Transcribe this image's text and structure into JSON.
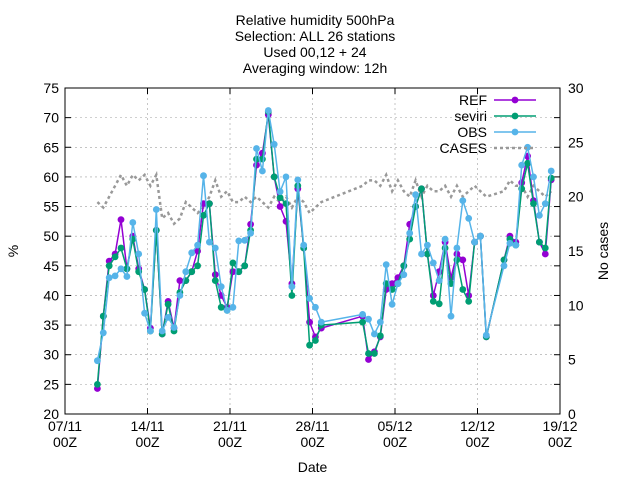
{
  "title_lines": [
    "Relative humidity 500hPa",
    "Selection: ALL      26 stations",
    "Used 00,12 + 24",
    "Averaging window: 12h"
  ],
  "chart_data": {
    "type": "line",
    "xlabel": "Date",
    "ylabel": "%",
    "y2label": "No cases",
    "xlim": [
      "2020-11-07T00",
      "2020-12-19T00"
    ],
    "ylim": [
      20,
      75
    ],
    "y2lim": [
      0,
      30
    ],
    "x_ticks": [
      {
        "x": "2020-11-07T00",
        "line1": "07/11",
        "line2": "00Z"
      },
      {
        "x": "2020-11-14T00",
        "line1": "14/11",
        "line2": "00Z"
      },
      {
        "x": "2020-11-21T00",
        "line1": "21/11",
        "line2": "00Z"
      },
      {
        "x": "2020-11-28T00",
        "line1": "28/11",
        "line2": "00Z"
      },
      {
        "x": "2020-12-05T00",
        "line1": "05/12",
        "line2": "00Z"
      },
      {
        "x": "2020-12-12T00",
        "line1": "12/12",
        "line2": "00Z"
      },
      {
        "x": "2020-12-19T00",
        "line1": "19/12",
        "line2": "00Z"
      }
    ],
    "y_ticks": [
      20,
      25,
      30,
      35,
      40,
      45,
      50,
      55,
      60,
      65,
      70,
      75
    ],
    "y2_ticks": [
      0,
      5,
      10,
      15,
      20,
      25,
      30
    ],
    "grid": true,
    "legend_position": "top-right",
    "x": [
      "2020-11-09T18",
      "2020-11-10T06",
      "2020-11-10T18",
      "2020-11-11T06",
      "2020-11-11T18",
      "2020-11-12T06",
      "2020-11-12T18",
      "2020-11-13T06",
      "2020-11-13T18",
      "2020-11-14T06",
      "2020-11-14T18",
      "2020-11-15T06",
      "2020-11-15T18",
      "2020-11-16T06",
      "2020-11-16T18",
      "2020-11-17T06",
      "2020-11-17T18",
      "2020-11-18T06",
      "2020-11-18T18",
      "2020-11-19T06",
      "2020-11-19T18",
      "2020-11-20T06",
      "2020-11-20T18",
      "2020-11-21T06",
      "2020-11-21T18",
      "2020-11-22T06",
      "2020-11-22T18",
      "2020-11-23T06",
      "2020-11-23T18",
      "2020-11-24T06",
      "2020-11-24T18",
      "2020-11-25T06",
      "2020-11-25T18",
      "2020-11-26T06",
      "2020-11-26T18",
      "2020-11-27T06",
      "2020-11-27T18",
      "2020-11-28T06",
      "2020-11-28T18",
      "2020-12-02T06",
      "2020-12-02T18",
      "2020-12-03T06",
      "2020-12-03T18",
      "2020-12-04T06",
      "2020-12-04T18",
      "2020-12-05T06",
      "2020-12-05T18",
      "2020-12-06T06",
      "2020-12-06T18",
      "2020-12-07T06",
      "2020-12-07T18",
      "2020-12-08T06",
      "2020-12-08T18",
      "2020-12-09T06",
      "2020-12-09T18",
      "2020-12-10T06",
      "2020-12-10T18",
      "2020-12-11T06",
      "2020-12-11T18",
      "2020-12-12T06",
      "2020-12-12T18",
      "2020-12-14T06",
      "2020-12-14T18",
      "2020-12-15T06",
      "2020-12-15T18",
      "2020-12-16T06",
      "2020-12-16T18",
      "2020-12-17T06",
      "2020-12-17T18",
      "2020-12-18T06"
    ],
    "series": [
      {
        "name": "REF",
        "color": "#9400d3",
        "marker": "circle",
        "values": [
          24.3,
          36.5,
          45.8,
          47,
          52.8,
          44.5,
          50,
          44.5,
          41,
          34.5,
          51,
          33.5,
          39,
          34.5,
          42.5,
          42.5,
          44,
          47.5,
          55.5,
          55.5,
          43.5,
          40,
          38,
          44,
          44,
          45,
          52,
          62,
          64,
          70.5,
          60,
          55,
          52.5,
          42,
          58,
          48,
          35.5,
          33,
          34.5,
          36.5,
          29.2,
          30.5,
          33,
          41,
          42,
          43,
          45,
          52,
          55,
          58,
          47,
          40,
          44,
          49,
          43,
          47,
          46,
          40,
          49,
          50,
          33,
          46,
          50,
          49,
          59,
          63.5,
          56,
          49,
          47,
          59.5
        ]
      },
      {
        "name": "seviri",
        "color": "#009e73",
        "marker": "circle",
        "values": [
          25,
          36.5,
          45,
          46.5,
          48,
          44.5,
          49.5,
          44,
          41,
          34,
          51,
          33.5,
          38.5,
          34,
          40.5,
          42.5,
          44,
          45,
          53.5,
          55.5,
          42.5,
          38,
          37.5,
          45.5,
          44,
          45,
          51,
          63,
          63,
          71,
          60,
          56.5,
          55.5,
          40,
          58.5,
          48,
          31.6,
          32.4,
          35,
          35.5,
          30.2,
          30.2,
          33.2,
          42,
          41,
          42,
          45,
          49.5,
          55,
          58,
          47,
          39,
          38.6,
          48,
          42,
          46,
          41,
          39,
          49,
          50,
          33,
          46,
          49.5,
          48.5,
          58,
          62.3,
          55.5,
          49,
          48,
          59.8
        ]
      },
      {
        "name": "OBS",
        "color": "#56b4e9",
        "marker": "circle",
        "values": [
          29,
          33.7,
          43,
          43.3,
          44.5,
          43.2,
          52.3,
          47,
          37,
          34,
          54.5,
          34,
          36.3,
          34.6,
          40,
          44,
          47.2,
          48.5,
          60.2,
          49,
          48,
          41.5,
          37.5,
          38,
          49.2,
          49.3,
          50.5,
          64.8,
          61,
          71.2,
          65.5,
          57.5,
          60,
          41.5,
          59.5,
          48.5,
          39.5,
          38,
          35.5,
          36.8,
          36,
          33.5,
          35.5,
          45.2,
          38.5,
          42,
          43.5,
          50.5,
          57,
          47,
          48.5,
          45.5,
          42.5,
          49.5,
          36.5,
          48,
          56,
          53,
          49,
          50,
          33.3,
          45,
          48.8,
          48.5,
          62,
          65,
          60,
          53.5,
          55.5,
          61
        ]
      },
      {
        "name": "CASES",
        "color": "#999999",
        "marker": "none",
        "axis": "y2",
        "dashed": true,
        "values": [
          19.5,
          19,
          20,
          21,
          22,
          21,
          22,
          21.5,
          22,
          21,
          22,
          18,
          18.5,
          17.5,
          18,
          19.5,
          19,
          18.5,
          19,
          20,
          21.5,
          20,
          20.5,
          19.5,
          19.5,
          20,
          19.5,
          20,
          19.5,
          19,
          20,
          19.5,
          20,
          19,
          20,
          19.5,
          18.5,
          19,
          19.5,
          21,
          21.5,
          21.5,
          21,
          22,
          20.5,
          21.5,
          20.5,
          20,
          21.5,
          20,
          21,
          20.5,
          20.5,
          21,
          20,
          21,
          20,
          20.5,
          21,
          20.5,
          20,
          20.5,
          21.5,
          21,
          21,
          20,
          21,
          20.5,
          20,
          20.5
        ]
      }
    ]
  }
}
